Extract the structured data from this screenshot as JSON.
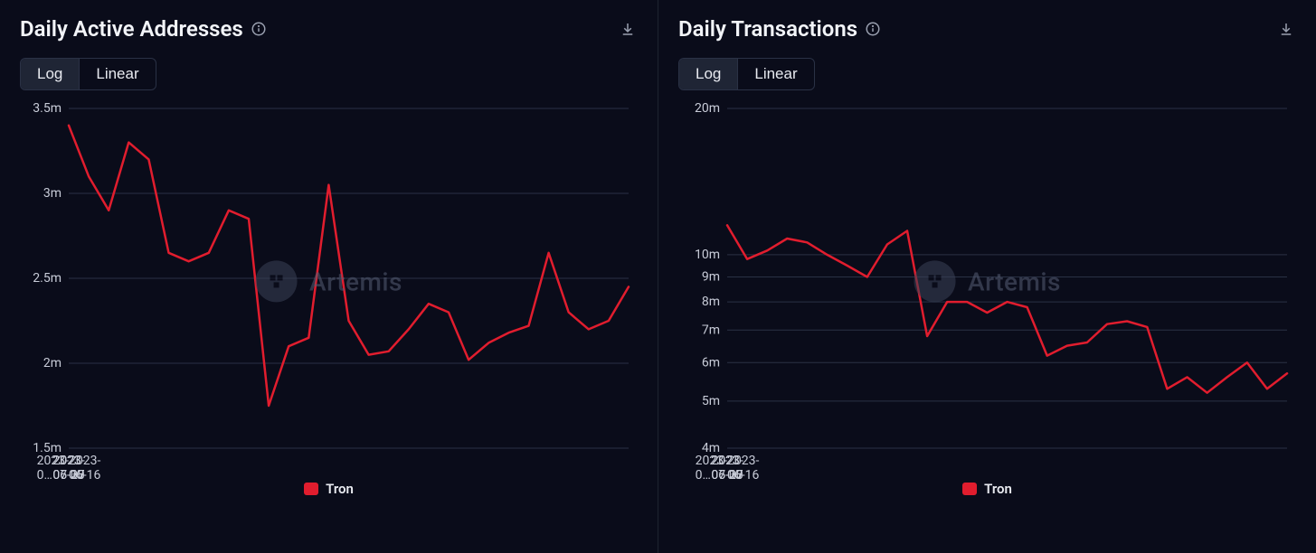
{
  "watermark_text": "Artemis",
  "panels": [
    {
      "id": "daa",
      "title": "Daily Active Addresses",
      "scale_toggle": {
        "options": [
          "Log",
          "Linear"
        ],
        "active": "Log"
      },
      "chart": {
        "type": "line",
        "scale": "linear",
        "background_color": "#0a0c1a",
        "grid_color": "#2a3145",
        "axis_label_color": "#c8ccd8",
        "axis_label_fontsize": 14,
        "series_color": "#e11d2e",
        "line_width": 2.5,
        "y_ticks": [
          1.5,
          2.0,
          2.5,
          3.0,
          3.5
        ],
        "y_tick_labels": [
          "1.5m",
          "2m",
          "2.5m",
          "3m",
          "3.5m"
        ],
        "ylim": [
          1.5,
          3.5
        ],
        "x_tick_labels": [
          "2023-06-16",
          "2023-06-23",
          "2023-06-30",
          "2023-07-07",
          "2023-0…"
        ],
        "x_tick_positions": [
          0,
          7,
          14,
          21,
          28
        ],
        "x_count": 29,
        "values": [
          3.4,
          3.1,
          2.9,
          3.3,
          3.2,
          2.65,
          2.6,
          2.65,
          2.9,
          2.85,
          1.75,
          2.1,
          2.15,
          3.05,
          2.25,
          2.05,
          2.07,
          2.2,
          2.35,
          2.3,
          2.02,
          2.12,
          2.18,
          2.22,
          2.65,
          2.3,
          2.2,
          2.25,
          2.45
        ],
        "legend_label": "Tron",
        "legend_swatch_color": "#e11d2e"
      }
    },
    {
      "id": "dtx",
      "title": "Daily Transactions",
      "scale_toggle": {
        "options": [
          "Log",
          "Linear"
        ],
        "active": "Log"
      },
      "chart": {
        "type": "line",
        "scale": "log",
        "background_color": "#0a0c1a",
        "grid_color": "#2a3145",
        "axis_label_color": "#c8ccd8",
        "axis_label_fontsize": 14,
        "series_color": "#e11d2e",
        "line_width": 2.5,
        "y_ticks": [
          4,
          5,
          6,
          7,
          8,
          9,
          10,
          20
        ],
        "y_tick_labels": [
          "4m",
          "5m",
          "6m",
          "7m",
          "8m",
          "9m",
          "10m",
          "20m"
        ],
        "ylim": [
          4,
          20
        ],
        "x_tick_labels": [
          "2023-06-16",
          "2023-06-23",
          "2023-06-30",
          "2023-07-07",
          "2023-0…"
        ],
        "x_tick_positions": [
          0,
          7,
          14,
          21,
          28
        ],
        "x_count": 29,
        "values": [
          11.5,
          9.8,
          10.2,
          10.8,
          10.6,
          10.0,
          9.5,
          9.0,
          10.5,
          11.2,
          6.8,
          8.0,
          8.0,
          7.6,
          8.0,
          7.8,
          6.2,
          6.5,
          6.6,
          7.2,
          7.3,
          7.1,
          5.3,
          5.6,
          5.2,
          5.6,
          6.0,
          5.3,
          5.7
        ],
        "legend_label": "Tron",
        "legend_swatch_color": "#e11d2e"
      }
    }
  ]
}
